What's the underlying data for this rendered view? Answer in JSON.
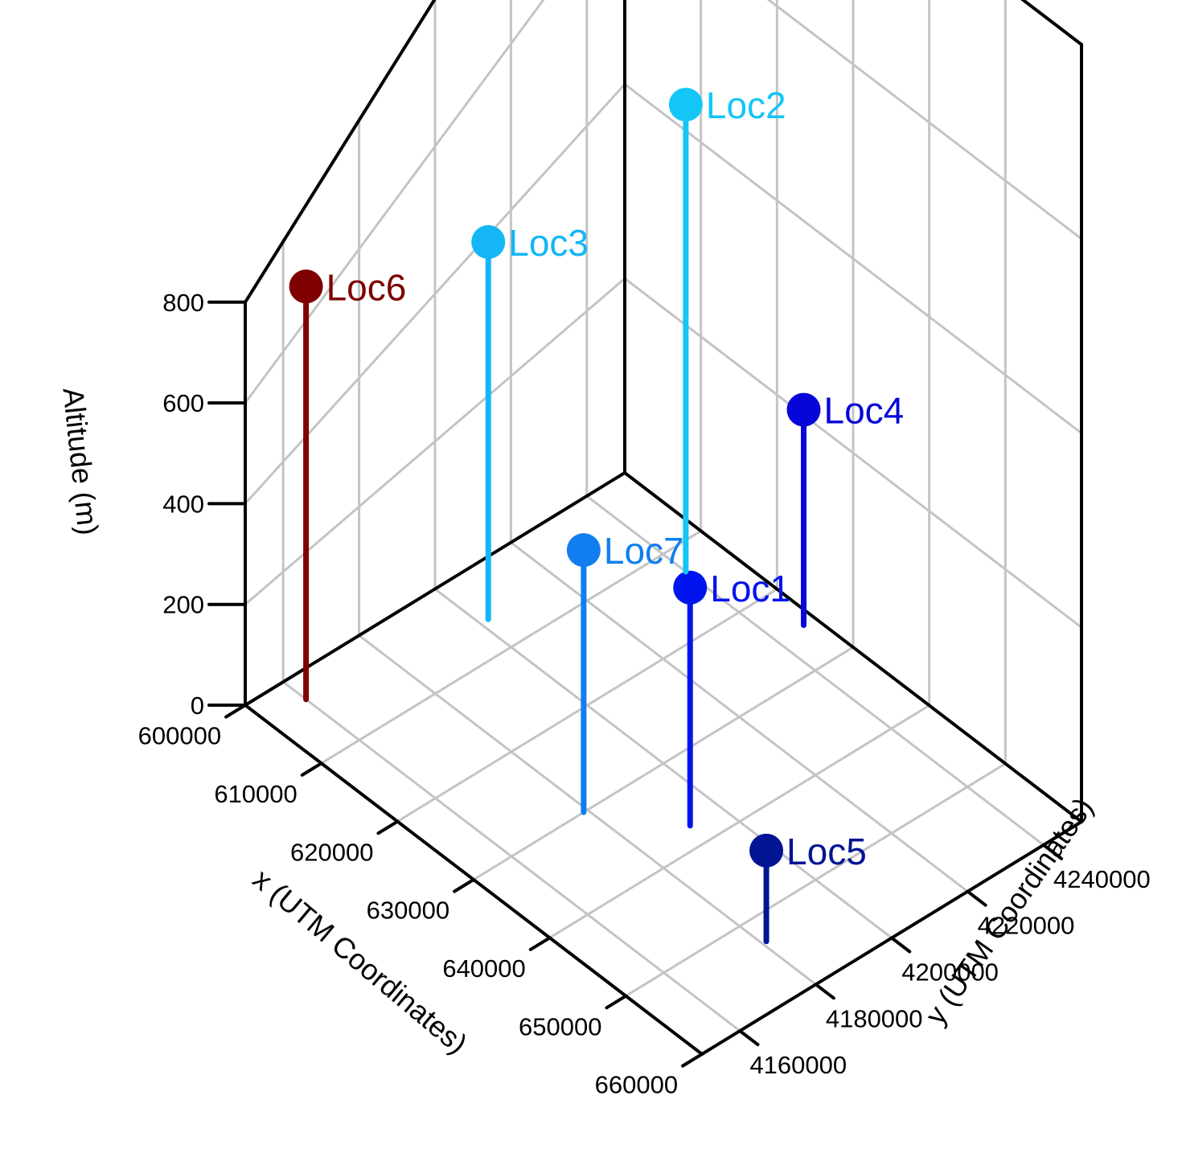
{
  "chart_data": {
    "type": "scatter",
    "title": "",
    "xlabel": "x (UTM Coordinates)",
    "ylabel": "y (UTM Coordinates)",
    "zlabel": "Altitude (m)",
    "xlim": [
      600000,
      660000
    ],
    "ylim": [
      4150000,
      4250000
    ],
    "zlim": [
      0,
      800
    ],
    "x_ticks": [
      "600000",
      "610000",
      "620000",
      "630000",
      "640000",
      "650000",
      "660000"
    ],
    "y_ticks": [
      "4160000",
      "4180000",
      "4200000",
      "4220000",
      "4240000"
    ],
    "z_ticks": [
      "0",
      "200",
      "400",
      "600",
      "800"
    ],
    "grid": true,
    "points": [
      {
        "name": "Loc1",
        "x": 637500,
        "y": 4192000,
        "z": 340,
        "color": "#0014ee"
      },
      {
        "name": "Loc2",
        "x": 613000,
        "y": 4240000,
        "z": 505,
        "color": "#14c6f7"
      },
      {
        "name": "Loc3",
        "x": 606000,
        "y": 4202000,
        "z": 505,
        "color": "#14b6f5"
      },
      {
        "name": "Loc4",
        "x": 625000,
        "y": 4247000,
        "z": 225,
        "color": "#0606d9"
      },
      {
        "name": "Loc5",
        "x": 653000,
        "y": 4181000,
        "z": 140,
        "color": "#001494"
      },
      {
        "name": "Loc6",
        "x": 603000,
        "y": 4160000,
        "z": 750,
        "color": "#7e0000"
      },
      {
        "name": "Loc7",
        "x": 630000,
        "y": 4179000,
        "z": 410,
        "color": "#117ef0"
      }
    ]
  }
}
